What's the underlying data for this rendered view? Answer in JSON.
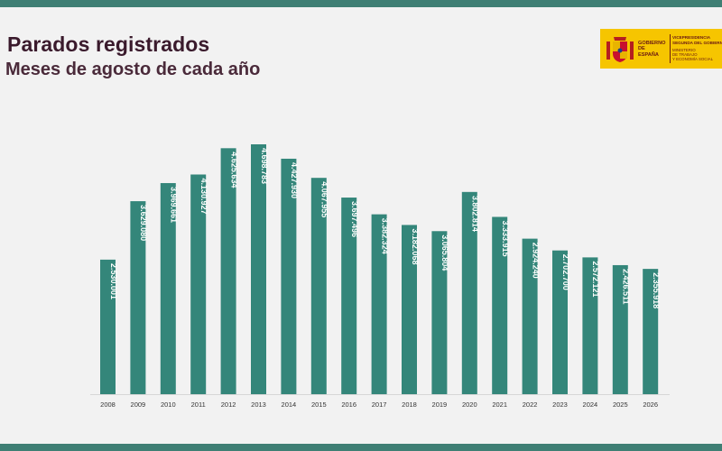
{
  "title": "Parados registrados",
  "subtitle": "Meses de agosto de cada año",
  "logo": {
    "gov_text": "GOBIERNO DE ESPAÑA",
    "vice_text": "VICEPRESIDENCIA\nSEGUNDA DEL GOBIERNO",
    "ministry_text": "MINISTERIO\nDE TRABAJO\nY ECONOMÍA SOCIAL"
  },
  "colors": {
    "bar": "#34867a",
    "label": "#ffffff",
    "title": "#3a1a2c",
    "band": "#3f7f74",
    "logo_bg": "#f6c500"
  },
  "chart_data": {
    "type": "bar",
    "categories": [
      "2008",
      "2009",
      "2010",
      "2011",
      "2012",
      "2013",
      "2014",
      "2015",
      "2016",
      "2017",
      "2018",
      "2019",
      "2020",
      "2021",
      "2022",
      "2023",
      "2024",
      "2025",
      "2026"
    ],
    "values": [
      2530001,
      3629080,
      3969661,
      4130927,
      4625634,
      4698783,
      4427930,
      4067955,
      3697496,
      3382324,
      3182068,
      3065804,
      3802814,
      3333915,
      2924240,
      2702700,
      2572121,
      2426511,
      2355918
    ],
    "value_labels": [
      "2.530.001",
      "3.629.080",
      "3.969.661",
      "4.130.927",
      "4.625.634",
      "4.698.783",
      "4.427.930",
      "4.067.955",
      "3.697.496",
      "3.382.324",
      "3.182.068",
      "3.065.804",
      "3.802.814",
      "3.333.915",
      "2.924.240",
      "2.702.700",
      "2.572.121",
      "2.426.511",
      "2.355.918"
    ],
    "title": "Parados registrados",
    "subtitle": "Meses de agosto de cada año",
    "xlabel": "",
    "ylabel": "",
    "ylim": [
      0,
      4698783
    ],
    "grid": false,
    "legend": "none"
  }
}
